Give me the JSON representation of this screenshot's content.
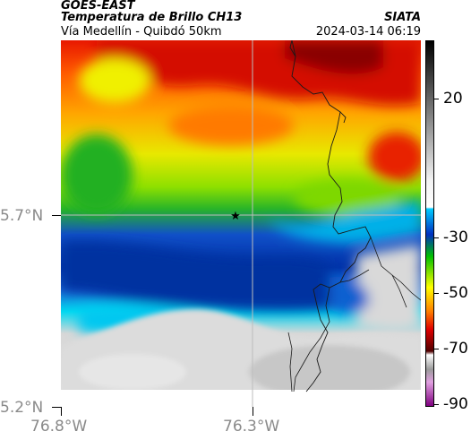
{
  "header": {
    "satellite": "GOES-EAST",
    "product": "Temperatura de Brillo CH13",
    "region": "Vía Medellín - Quibdó 50km",
    "brand": "SIATA",
    "datetime": "2024-03-14 06:19"
  },
  "axes": {
    "y_ticks": [
      {
        "label": "5.7°N",
        "value": 5.7
      },
      {
        "label": "5.2°N",
        "value": 5.2
      }
    ],
    "x_ticks": [
      {
        "label": "76.8°W",
        "value": -76.8
      },
      {
        "label": "76.3°W",
        "value": -76.3
      }
    ]
  },
  "colorbar": {
    "ticks": [
      {
        "label": "20",
        "value": 20
      },
      {
        "label": "-30",
        "value": -30
      },
      {
        "label": "-50",
        "value": -50
      },
      {
        "label": "-70",
        "value": -70
      },
      {
        "label": "-90",
        "value": -90
      }
    ]
  },
  "marker": {
    "icon": "star-icon",
    "symbol": "★"
  },
  "colors": {
    "warm_gray": "#d9d9d9",
    "cyan": "#00d8f0",
    "blue": "#0038b8",
    "green": "#28b428",
    "yellow": "#e8e800",
    "orange": "#ff8c00",
    "red": "#e81800",
    "dark_red": "#7a0000"
  }
}
